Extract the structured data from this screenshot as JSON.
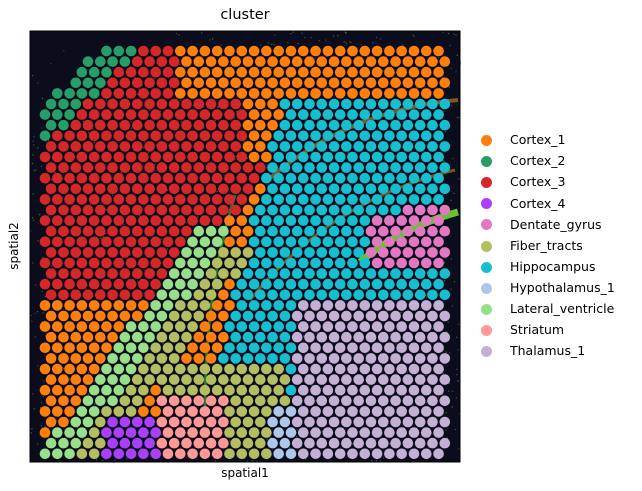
{
  "chart_data": {
    "type": "scatter",
    "title": "cluster",
    "xlabel": "spatial1",
    "ylabel": "spatial2",
    "legend_position": "right",
    "categories": [
      {
        "name": "Cortex_1",
        "color": "#ff7f0e"
      },
      {
        "name": "Cortex_2",
        "color": "#279e68"
      },
      {
        "name": "Cortex_3",
        "color": "#d62728"
      },
      {
        "name": "Cortex_4",
        "color": "#aa40fc"
      },
      {
        "name": "Dentate_gyrus",
        "color": "#e377c2"
      },
      {
        "name": "Fiber_tracts",
        "color": "#b5bd61"
      },
      {
        "name": "Hippocampus",
        "color": "#17becf"
      },
      {
        "name": "Hypothalamus_1",
        "color": "#aec7e8"
      },
      {
        "name": "Lateral_ventricle",
        "color": "#98df8a"
      },
      {
        "name": "Striatum",
        "color": "#ff9896"
      },
      {
        "name": "Thalamus_1",
        "color": "#c5b0d5"
      }
    ],
    "background": "tissue image (dark, fluorescence)",
    "grid": false
  }
}
